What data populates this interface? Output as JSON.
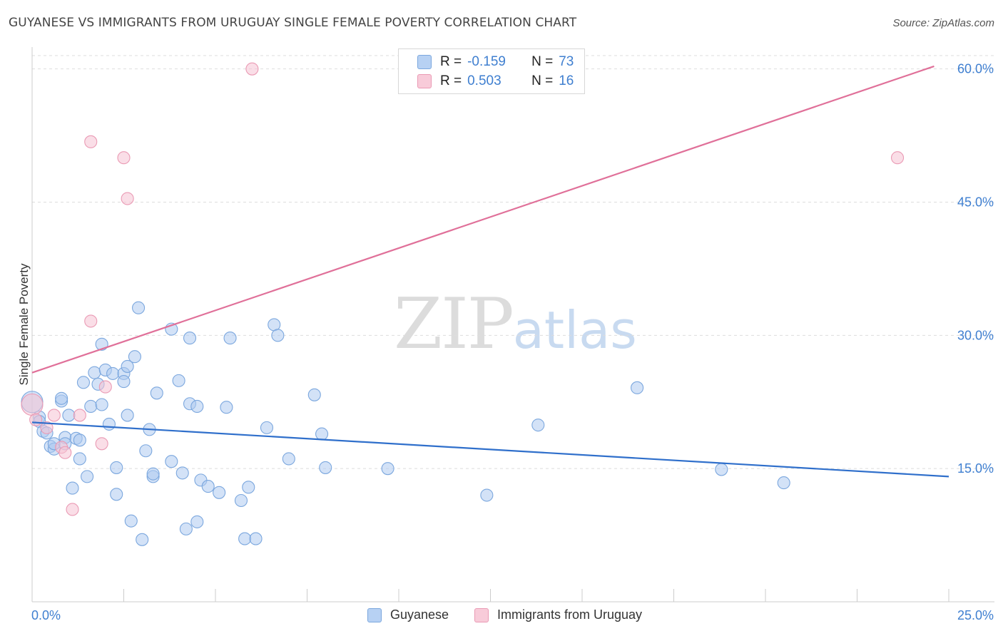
{
  "header": {
    "title": "GUYANESE VS IMMIGRANTS FROM URUGUAY SINGLE FEMALE POVERTY CORRELATION CHART",
    "source": "Source: ZipAtlas.com"
  },
  "watermark": {
    "zip": "ZIP",
    "atlas": "atlas"
  },
  "legend": {
    "rows": [
      {
        "r_label": "R = ",
        "r_value": "-0.159",
        "n_label": "N = ",
        "n_value": "73"
      },
      {
        "r_label": "R = ",
        "r_value": "0.503",
        "n_label": "N = ",
        "n_value": "16"
      }
    ]
  },
  "colors": {
    "blue_fill": "#aecbf1",
    "blue_stroke": "#7ba7de",
    "blue_line": "#2f6fcb",
    "pink_fill": "#f6c3d3",
    "pink_stroke": "#ea9ab4",
    "pink_line": "#e07099",
    "tick_label": "#3f7fd0",
    "grid": "#dddddd"
  },
  "chart_data": {
    "type": "scatter",
    "title": "GUYANESE VS IMMIGRANTS FROM URUGUAY SINGLE FEMALE POVERTY CORRELATION CHART",
    "xlabel": "",
    "ylabel": "Single Female Poverty",
    "xlim": [
      0,
      25
    ],
    "ylim": [
      0,
      61.5
    ],
    "x_tick_labels": [
      "0.0%",
      "25.0%"
    ],
    "y_ticks": [
      15,
      30,
      45,
      60
    ],
    "y_tick_labels": [
      "15.0%",
      "30.0%",
      "45.0%",
      "60.0%"
    ],
    "grid": "horizontal dashed",
    "legend_position": "top-center",
    "series": [
      {
        "name": "Guyanese",
        "points": [
          [
            0.0,
            22.5
          ],
          [
            0.2,
            20.8
          ],
          [
            0.2,
            20.3
          ],
          [
            0.3,
            19.2
          ],
          [
            0.4,
            19.0
          ],
          [
            0.5,
            17.5
          ],
          [
            0.6,
            17.2
          ],
          [
            0.6,
            17.8
          ],
          [
            0.8,
            22.6
          ],
          [
            0.8,
            22.9
          ],
          [
            0.9,
            18.5
          ],
          [
            0.9,
            17.8
          ],
          [
            1.0,
            21.0
          ],
          [
            1.1,
            12.8
          ],
          [
            1.2,
            18.4
          ],
          [
            1.3,
            18.2
          ],
          [
            1.3,
            16.1
          ],
          [
            1.4,
            24.7
          ],
          [
            1.5,
            14.1
          ],
          [
            1.6,
            22.0
          ],
          [
            1.7,
            25.8
          ],
          [
            1.8,
            24.5
          ],
          [
            1.9,
            29.0
          ],
          [
            1.9,
            22.2
          ],
          [
            2.0,
            26.1
          ],
          [
            2.1,
            20.0
          ],
          [
            2.2,
            25.7
          ],
          [
            2.3,
            12.1
          ],
          [
            2.3,
            15.1
          ],
          [
            2.5,
            25.7
          ],
          [
            2.5,
            24.8
          ],
          [
            2.6,
            21.0
          ],
          [
            2.6,
            26.5
          ],
          [
            2.7,
            9.1
          ],
          [
            2.8,
            27.6
          ],
          [
            2.9,
            33.1
          ],
          [
            3.0,
            7.0
          ],
          [
            3.1,
            17.0
          ],
          [
            3.2,
            19.4
          ],
          [
            3.3,
            14.1
          ],
          [
            3.3,
            14.4
          ],
          [
            3.4,
            23.5
          ],
          [
            3.8,
            30.7
          ],
          [
            3.8,
            15.8
          ],
          [
            4.0,
            24.9
          ],
          [
            4.1,
            14.5
          ],
          [
            4.2,
            8.2
          ],
          [
            4.3,
            22.3
          ],
          [
            4.3,
            29.7
          ],
          [
            4.5,
            22.0
          ],
          [
            4.5,
            9.0
          ],
          [
            4.6,
            13.7
          ],
          [
            4.8,
            13.0
          ],
          [
            5.1,
            12.3
          ],
          [
            5.3,
            21.9
          ],
          [
            5.4,
            29.7
          ],
          [
            5.7,
            11.4
          ],
          [
            5.8,
            7.1
          ],
          [
            5.9,
            12.9
          ],
          [
            6.1,
            7.1
          ],
          [
            6.4,
            19.6
          ],
          [
            6.6,
            31.2
          ],
          [
            6.7,
            30.0
          ],
          [
            7.0,
            16.1
          ],
          [
            7.7,
            23.3
          ],
          [
            7.9,
            18.9
          ],
          [
            8.0,
            15.1
          ],
          [
            9.7,
            15.0
          ],
          [
            12.4,
            12.0
          ],
          [
            13.8,
            19.9
          ],
          [
            16.5,
            24.1
          ],
          [
            18.8,
            14.9
          ],
          [
            20.5,
            13.4
          ]
        ],
        "trend": {
          "x": [
            0,
            25
          ],
          "y": [
            20.2,
            14.1
          ]
        }
      },
      {
        "name": "Immigrants from Uruguay",
        "points": [
          [
            0.0,
            22.2
          ],
          [
            0.4,
            19.6
          ],
          [
            0.6,
            21.0
          ],
          [
            0.8,
            17.4
          ],
          [
            0.9,
            16.8
          ],
          [
            1.1,
            10.4
          ],
          [
            1.3,
            21.0
          ],
          [
            1.6,
            31.6
          ],
          [
            1.6,
            51.8
          ],
          [
            1.9,
            17.8
          ],
          [
            2.0,
            24.2
          ],
          [
            2.5,
            50.0
          ],
          [
            2.6,
            45.4
          ],
          [
            6.0,
            60.0
          ],
          [
            23.6,
            50.0
          ],
          [
            0.1,
            20.5
          ]
        ],
        "trend": {
          "x": [
            0,
            24.6
          ],
          "y": [
            25.8,
            60.3
          ]
        }
      }
    ]
  }
}
